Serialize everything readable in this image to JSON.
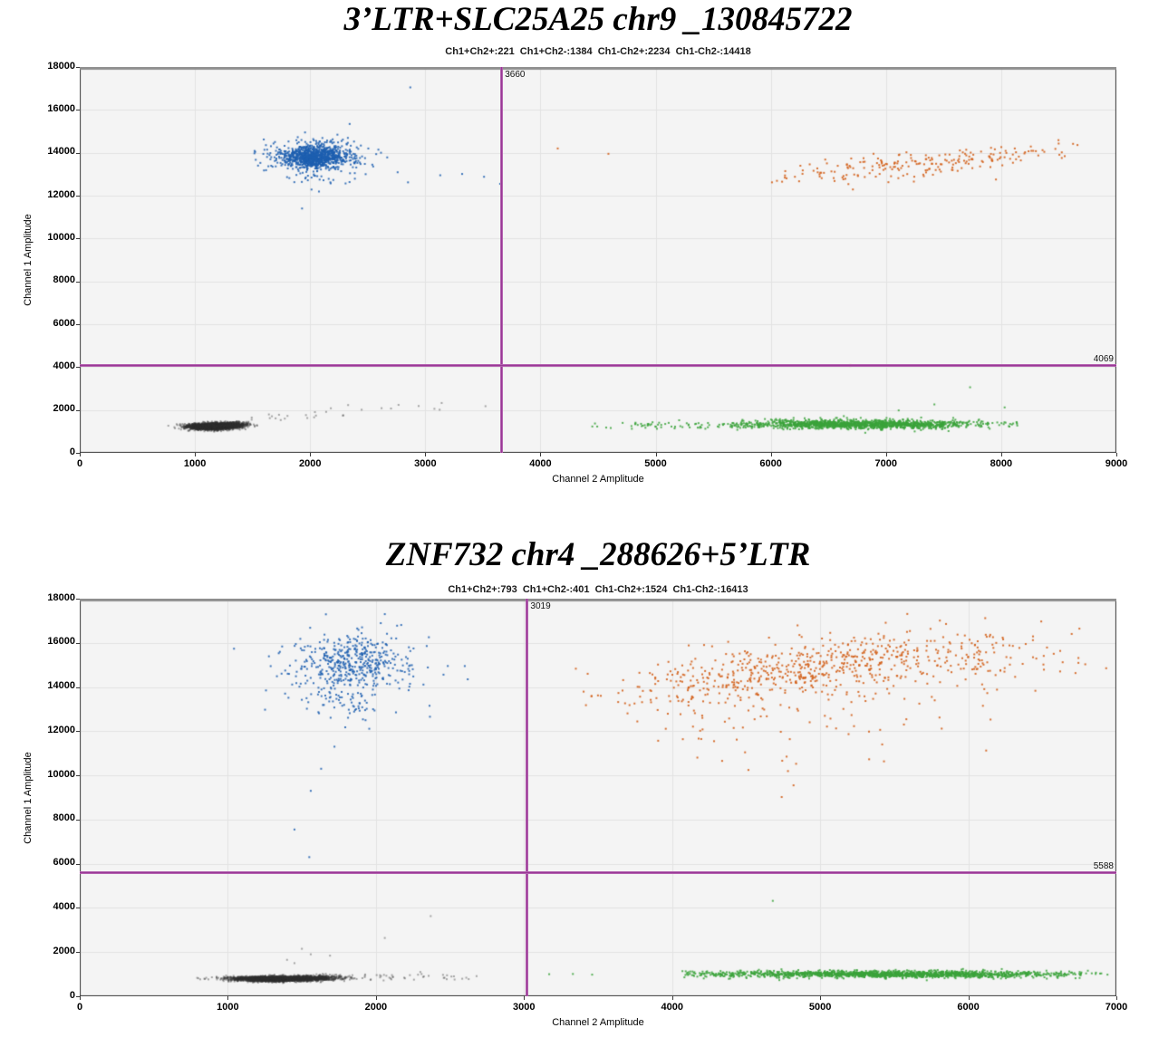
{
  "page": {
    "background": "#ffffff"
  },
  "colors": {
    "plot_bg": "#f4f4f4",
    "grid": "#e2e2e2",
    "border": "#3b3b3b",
    "border_top": "#8f8f8f",
    "threshold": "#993a99",
    "negative": "#2f2f2f",
    "ch1_positive": "#1d5fb0",
    "ch2_positive": "#3ba33b",
    "double_positive": "#d4621c"
  },
  "chart_data": [
    {
      "type": "scatter",
      "title": "3’LTR+SLC25A25 chr9 _130845722",
      "subtitle_stats": [
        {
          "label": "Ch1+Ch2+",
          "value": 221
        },
        {
          "label": "Ch1+Ch2-",
          "value": 1384
        },
        {
          "label": "Ch1-Ch2+",
          "value": 2234
        },
        {
          "label": "Ch1-Ch2-",
          "value": 14418
        }
      ],
      "xlabel": "Channel 2 Amplitude",
      "ylabel": "Channel 1 Amplitude",
      "xlim": [
        0,
        9000
      ],
      "ylim": [
        0,
        18000
      ],
      "xticks": [
        0,
        1000,
        2000,
        3000,
        4000,
        5000,
        6000,
        7000,
        8000,
        9000
      ],
      "yticks": [
        0,
        2000,
        4000,
        6000,
        8000,
        10000,
        12000,
        14000,
        16000,
        18000
      ],
      "grid": true,
      "legend": false,
      "thresholds": {
        "ch2_amplitude": 3660,
        "ch1_amplitude": 4069
      },
      "clusters": [
        {
          "name": "Ch1-Ch2-",
          "color_key": "negative",
          "alpha": 0.4,
          "blobs": [
            {
              "n": 2400,
              "cx": 1140,
              "cy": 1230,
              "sx": 100,
              "sy": 70
            },
            {
              "n": 700,
              "cx": 1290,
              "cy": 1300,
              "sx": 85,
              "sy": 65
            }
          ],
          "trails": [
            {
              "n": 26,
              "x0": 1480,
              "y0": 1550,
              "x1": 3560,
              "y1": 2350,
              "jx": 130,
              "jy": 170
            }
          ],
          "points": [
            [
              2180,
              2080
            ],
            [
              2330,
              2230
            ],
            [
              1650,
              1620
            ]
          ]
        },
        {
          "name": "Ch1+Ch2-",
          "color_key": "ch1_positive",
          "alpha": 0.85,
          "blobs": [
            {
              "n": 950,
              "cx": 2040,
              "cy": 13790,
              "sx": 140,
              "sy": 260
            },
            {
              "n": 160,
              "cx": 2080,
              "cy": 13880,
              "sx": 250,
              "sy": 430
            },
            {
              "n": 26,
              "cx": 1990,
              "cy": 12820,
              "sx": 190,
              "sy": 330
            }
          ],
          "points": [
            [
              2870,
              17050
            ],
            [
              1930,
              11400
            ],
            [
              3130,
              12950
            ],
            [
              3320,
              13010
            ],
            [
              3510,
              12880
            ],
            [
              3650,
              12550
            ],
            [
              2760,
              13090
            ],
            [
              2850,
              12620
            ]
          ]
        },
        {
          "name": "Ch1-Ch2+",
          "color_key": "ch2_positive",
          "alpha": 0.85,
          "blobs": [
            {
              "n": 1500,
              "cx": 6750,
              "cy": 1330,
              "sx": 520,
              "sy": 100,
              "xmin": 5550,
              "xmax": 8150
            },
            {
              "n": 55,
              "cx": 5100,
              "cy": 1280,
              "sx": 430,
              "sy": 90,
              "xmin": 4380,
              "xmax": 5620
            }
          ],
          "points": [
            [
              4450,
              1230
            ],
            [
              4610,
              1160
            ],
            [
              4790,
              1250
            ],
            [
              7420,
              2260
            ],
            [
              7730,
              3060
            ],
            [
              7110,
              1980
            ],
            [
              8030,
              2120
            ]
          ]
        },
        {
          "name": "Ch1+Ch2+",
          "color_key": "double_positive",
          "alpha": 0.9,
          "blobs": [
            {
              "n": 205,
              "cx": 7350,
              "cy": 13520,
              "sx": 640,
              "sy": 270,
              "slope": 0.45,
              "xmin": 6060,
              "xmax": 8840
            },
            {
              "n": 14,
              "cx": 7000,
              "cy": 12800,
              "sx": 660,
              "sy": 230
            }
          ],
          "points": [
            [
              4150,
              14200
            ],
            [
              4590,
              13950
            ],
            [
              6010,
              12620
            ],
            [
              6690,
              4080
            ]
          ]
        }
      ]
    },
    {
      "type": "scatter",
      "title": "ZNF732 chr4 _288626+5’LTR",
      "subtitle_stats": [
        {
          "label": "Ch1+Ch2+",
          "value": 793
        },
        {
          "label": "Ch1+Ch2-",
          "value": 401
        },
        {
          "label": "Ch1-Ch2+",
          "value": 1524
        },
        {
          "label": "Ch1-Ch2-",
          "value": 16413
        }
      ],
      "xlabel": "Channel 2 Amplitude",
      "ylabel": "Channel 1 Amplitude",
      "xlim": [
        0,
        7000
      ],
      "ylim": [
        0,
        18000
      ],
      "xticks": [
        0,
        1000,
        2000,
        3000,
        4000,
        5000,
        6000,
        7000
      ],
      "yticks": [
        0,
        2000,
        4000,
        6000,
        8000,
        10000,
        12000,
        14000,
        16000,
        18000
      ],
      "grid": true,
      "legend": false,
      "thresholds": {
        "ch2_amplitude": 3019,
        "ch1_amplitude": 5588
      },
      "clusters": [
        {
          "name": "Ch1-Ch2-",
          "color_key": "negative",
          "alpha": 0.4,
          "blobs": [
            {
              "n": 2800,
              "cx": 1320,
              "cy": 790,
              "sx": 140,
              "sy": 55
            },
            {
              "n": 500,
              "cx": 1570,
              "cy": 830,
              "sx": 115,
              "sy": 60
            }
          ],
          "trails": [
            {
              "n": 45,
              "x0": 1780,
              "y0": 830,
              "x1": 2640,
              "y1": 890,
              "jx": 90,
              "jy": 150
            }
          ],
          "points": [
            [
              1500,
              2150
            ],
            [
              1560,
              1900
            ],
            [
              1690,
              1840
            ],
            [
              2060,
              2640
            ],
            [
              2370,
              3630
            ],
            [
              1450,
              1500
            ],
            [
              2300,
              1100
            ],
            [
              2480,
              950
            ],
            [
              2610,
              840
            ],
            [
              1400,
              1650
            ]
          ]
        },
        {
          "name": "Ch1+Ch2-",
          "color_key": "ch1_positive",
          "alpha": 0.85,
          "blobs": [
            {
              "n": 420,
              "cx": 1850,
              "cy": 15150,
              "sx": 190,
              "sy": 620,
              "ymax": 17300
            },
            {
              "n": 85,
              "cx": 1810,
              "cy": 13400,
              "sx": 200,
              "sy": 520
            },
            {
              "n": 40,
              "cx": 1950,
              "cy": 15100,
              "sx": 340,
              "sy": 950,
              "ymax": 17350
            }
          ],
          "points": [
            [
              2600,
              14950
            ],
            [
              2620,
              14350
            ],
            [
              1630,
              10300
            ],
            [
              1560,
              9300
            ],
            [
              1450,
              7550
            ],
            [
              1550,
              6300
            ],
            [
              1720,
              11300
            ],
            [
              2060,
              17300
            ]
          ]
        },
        {
          "name": "Ch1-Ch2+",
          "color_key": "ch2_positive",
          "alpha": 0.85,
          "blobs": [
            {
              "n": 1600,
              "cx": 5500,
              "cy": 1000,
              "sx": 620,
              "sy": 75,
              "xmin": 4080,
              "xmax": 6900
            },
            {
              "n": 45,
              "cx": 4400,
              "cy": 1040,
              "sx": 270,
              "sy": 80,
              "xmin": 4050
            }
          ],
          "points": [
            [
              3170,
              1000
            ],
            [
              3330,
              1010
            ],
            [
              3460,
              980
            ],
            [
              4680,
              4320
            ],
            [
              6860,
              1010
            ],
            [
              6940,
              980
            ]
          ]
        },
        {
          "name": "Ch1+Ch2+",
          "color_key": "double_positive",
          "alpha": 0.9,
          "blobs": [
            {
              "n": 520,
              "cx": 4800,
              "cy": 14700,
              "sx": 570,
              "sy": 600,
              "slope": 0.9,
              "xmin": 3400,
              "xmax": 6890,
              "ymax": 17380
            },
            {
              "n": 180,
              "cx": 5800,
              "cy": 15300,
              "sx": 490,
              "sy": 660,
              "ymax": 17380
            },
            {
              "n": 70,
              "cx": 4700,
              "cy": 12600,
              "sx": 620,
              "sy": 620
            },
            {
              "n": 12,
              "cx": 4900,
              "cy": 10900,
              "sx": 520,
              "sy": 480
            }
          ],
          "points": [
            [
              3350,
              14830
            ],
            [
              3430,
              14600
            ],
            [
              4820,
              9550
            ],
            [
              4740,
              9020
            ]
          ]
        }
      ]
    }
  ]
}
